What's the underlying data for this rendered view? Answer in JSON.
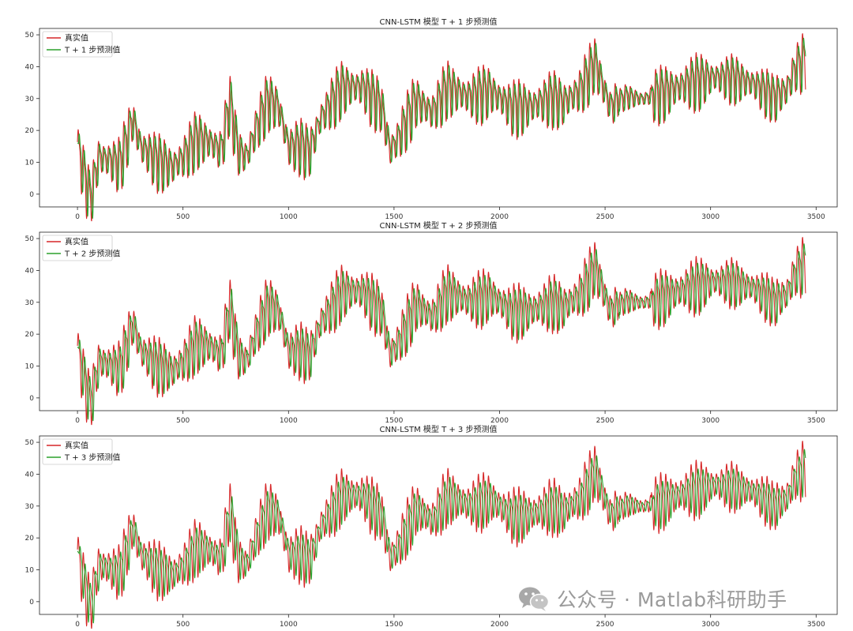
{
  "chart_data": [
    {
      "type": "line",
      "title": "CNN-LSTM 模型 T + 1 步预测值",
      "xlabel": "",
      "ylabel": "",
      "xlim": [
        -180,
        3600
      ],
      "ylim": [
        -4,
        52
      ],
      "xticks": [
        0,
        500,
        1000,
        1500,
        2000,
        2500,
        3000,
        3500
      ],
      "yticks": [
        0,
        10,
        20,
        30,
        40,
        50
      ],
      "legend_position": "upper-left",
      "series": [
        {
          "name": "真实值",
          "color": "#d62728"
        },
        {
          "name": "T + 1 步预测值",
          "color": "#2ca02c"
        }
      ],
      "x_max": 3450,
      "lag": 5,
      "peak_shave": 0.18,
      "anchor_points": [
        [
          0,
          15
        ],
        [
          40,
          4
        ],
        [
          60,
          -1
        ],
        [
          100,
          12
        ],
        [
          200,
          10
        ],
        [
          260,
          24
        ],
        [
          300,
          15
        ],
        [
          380,
          11
        ],
        [
          450,
          9
        ],
        [
          500,
          12
        ],
        [
          560,
          18
        ],
        [
          620,
          17
        ],
        [
          680,
          14
        ],
        [
          720,
          30
        ],
        [
          760,
          14
        ],
        [
          800,
          12
        ],
        [
          850,
          22
        ],
        [
          900,
          30
        ],
        [
          950,
          28
        ],
        [
          1000,
          15
        ],
        [
          1050,
          16
        ],
        [
          1100,
          14
        ],
        [
          1150,
          24
        ],
        [
          1250,
          34
        ],
        [
          1350,
          34
        ],
        [
          1440,
          28
        ],
        [
          1480,
          14
        ],
        [
          1520,
          18
        ],
        [
          1600,
          30
        ],
        [
          1680,
          26
        ],
        [
          1750,
          34
        ],
        [
          1850,
          31
        ],
        [
          1950,
          33
        ],
        [
          2050,
          28
        ],
        [
          2150,
          28
        ],
        [
          2250,
          31
        ],
        [
          2300,
          29
        ],
        [
          2380,
          33
        ],
        [
          2450,
          42
        ],
        [
          2520,
          28
        ],
        [
          2600,
          31
        ],
        [
          2680,
          30
        ],
        [
          2750,
          32
        ],
        [
          2800,
          33
        ],
        [
          2850,
          34
        ],
        [
          2920,
          36
        ],
        [
          3000,
          37
        ],
        [
          3100,
          37
        ],
        [
          3200,
          35
        ],
        [
          3300,
          31
        ],
        [
          3360,
          33
        ],
        [
          3400,
          40
        ],
        [
          3450,
          43
        ]
      ]
    },
    {
      "type": "line",
      "title": "CNN-LSTM 模型 T + 2 步预测值",
      "xlabel": "",
      "ylabel": "",
      "xlim": [
        -180,
        3600
      ],
      "ylim": [
        -4,
        52
      ],
      "xticks": [
        0,
        500,
        1000,
        1500,
        2000,
        2500,
        3000,
        3500
      ],
      "yticks": [
        0,
        10,
        20,
        30,
        40,
        50
      ],
      "legend_position": "upper-left",
      "series": [
        {
          "name": "真实值",
          "color": "#d62728"
        },
        {
          "name": "T + 2 步预测值",
          "color": "#2ca02c"
        }
      ],
      "x_max": 3450,
      "lag": 7,
      "peak_shave": 0.26,
      "anchor_points": [
        [
          0,
          15
        ],
        [
          40,
          4
        ],
        [
          60,
          -1
        ],
        [
          100,
          12
        ],
        [
          200,
          10
        ],
        [
          260,
          24
        ],
        [
          300,
          15
        ],
        [
          380,
          11
        ],
        [
          450,
          9
        ],
        [
          500,
          12
        ],
        [
          560,
          18
        ],
        [
          620,
          17
        ],
        [
          680,
          14
        ],
        [
          720,
          30
        ],
        [
          760,
          14
        ],
        [
          800,
          12
        ],
        [
          850,
          22
        ],
        [
          900,
          30
        ],
        [
          950,
          28
        ],
        [
          1000,
          15
        ],
        [
          1050,
          16
        ],
        [
          1100,
          14
        ],
        [
          1150,
          24
        ],
        [
          1250,
          34
        ],
        [
          1350,
          34
        ],
        [
          1440,
          28
        ],
        [
          1480,
          14
        ],
        [
          1520,
          18
        ],
        [
          1600,
          30
        ],
        [
          1680,
          26
        ],
        [
          1750,
          34
        ],
        [
          1850,
          31
        ],
        [
          1950,
          33
        ],
        [
          2050,
          28
        ],
        [
          2150,
          28
        ],
        [
          2250,
          31
        ],
        [
          2300,
          29
        ],
        [
          2380,
          33
        ],
        [
          2450,
          42
        ],
        [
          2520,
          28
        ],
        [
          2600,
          31
        ],
        [
          2680,
          30
        ],
        [
          2750,
          32
        ],
        [
          2800,
          33
        ],
        [
          2850,
          34
        ],
        [
          2920,
          36
        ],
        [
          3000,
          37
        ],
        [
          3100,
          37
        ],
        [
          3200,
          35
        ],
        [
          3300,
          31
        ],
        [
          3360,
          33
        ],
        [
          3400,
          40
        ],
        [
          3450,
          43
        ]
      ]
    },
    {
      "type": "line",
      "title": "CNN-LSTM 模型 T + 3 步预测值",
      "xlabel": "",
      "ylabel": "",
      "xlim": [
        -180,
        3600
      ],
      "ylim": [
        -4,
        52
      ],
      "xticks": [
        0,
        500,
        1000,
        1500,
        2000,
        2500,
        3000,
        3500
      ],
      "yticks": [
        0,
        10,
        20,
        30,
        40,
        50
      ],
      "legend_position": "upper-left",
      "series": [
        {
          "name": "真实值",
          "color": "#d62728"
        },
        {
          "name": "T + 3 步预测值",
          "color": "#2ca02c"
        }
      ],
      "x_max": 3450,
      "lag": 9,
      "peak_shave": 0.34,
      "anchor_points": [
        [
          0,
          15
        ],
        [
          40,
          4
        ],
        [
          60,
          -1
        ],
        [
          100,
          12
        ],
        [
          200,
          10
        ],
        [
          260,
          24
        ],
        [
          300,
          15
        ],
        [
          380,
          11
        ],
        [
          450,
          9
        ],
        [
          500,
          12
        ],
        [
          560,
          18
        ],
        [
          620,
          17
        ],
        [
          680,
          14
        ],
        [
          720,
          30
        ],
        [
          760,
          14
        ],
        [
          800,
          12
        ],
        [
          850,
          22
        ],
        [
          900,
          30
        ],
        [
          950,
          28
        ],
        [
          1000,
          15
        ],
        [
          1050,
          16
        ],
        [
          1100,
          14
        ],
        [
          1150,
          24
        ],
        [
          1250,
          34
        ],
        [
          1350,
          34
        ],
        [
          1440,
          28
        ],
        [
          1480,
          14
        ],
        [
          1520,
          18
        ],
        [
          1600,
          30
        ],
        [
          1680,
          26
        ],
        [
          1750,
          34
        ],
        [
          1850,
          31
        ],
        [
          1950,
          33
        ],
        [
          2050,
          28
        ],
        [
          2150,
          28
        ],
        [
          2250,
          31
        ],
        [
          2300,
          29
        ],
        [
          2380,
          33
        ],
        [
          2450,
          42
        ],
        [
          2520,
          28
        ],
        [
          2600,
          31
        ],
        [
          2680,
          30
        ],
        [
          2750,
          32
        ],
        [
          2800,
          33
        ],
        [
          2850,
          34
        ],
        [
          2920,
          36
        ],
        [
          3000,
          37
        ],
        [
          3100,
          37
        ],
        [
          3200,
          35
        ],
        [
          3300,
          31
        ],
        [
          3360,
          33
        ],
        [
          3400,
          40
        ],
        [
          3450,
          43
        ]
      ]
    }
  ],
  "watermark": {
    "text": "公众号 · Matlab科研助手",
    "icon": "wechat-icon"
  }
}
